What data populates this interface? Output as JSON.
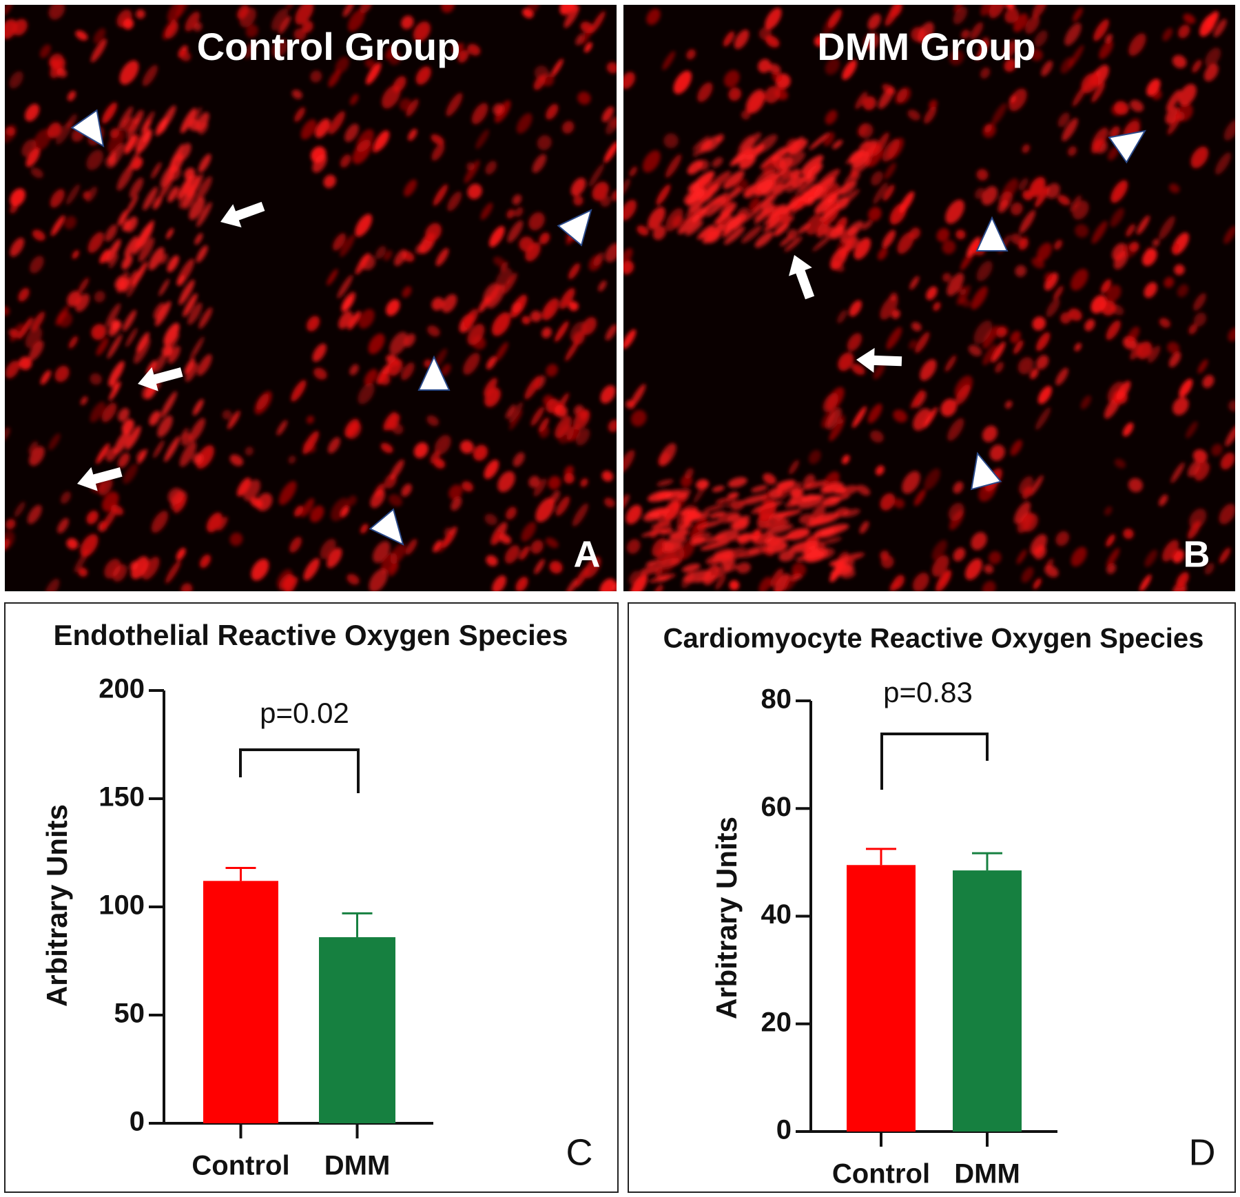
{
  "panels": [
    {
      "title": "Control Group",
      "label": "A"
    },
    {
      "title": "DMM Group",
      "label": "B"
    }
  ],
  "chart_data": [
    {
      "type": "bar",
      "title": "Endothelial Reactive Oxygen Species",
      "ylabel": "Arbitrary Units",
      "categories": [
        "Control",
        "DMM"
      ],
      "values": [
        112,
        86
      ],
      "errors": [
        6,
        11
      ],
      "colors": [
        "#ff0000",
        "#168040"
      ],
      "ylim": [
        0,
        200
      ],
      "yticks": [
        0,
        50,
        100,
        150,
        200
      ],
      "annotation": "p=0.02",
      "label": "C"
    },
    {
      "type": "bar",
      "title": "Cardiomyocyte Reactive Oxygen Species",
      "ylabel": "Arbitrary Units",
      "categories": [
        "Control",
        "DMM"
      ],
      "values": [
        49.5,
        48.5
      ],
      "errors": [
        3,
        3.2
      ],
      "colors": [
        "#ff0000",
        "#168040"
      ],
      "ylim": [
        0,
        80
      ],
      "yticks": [
        0,
        20,
        40,
        60,
        80
      ],
      "annotation": "p=0.83",
      "label": "D"
    }
  ]
}
